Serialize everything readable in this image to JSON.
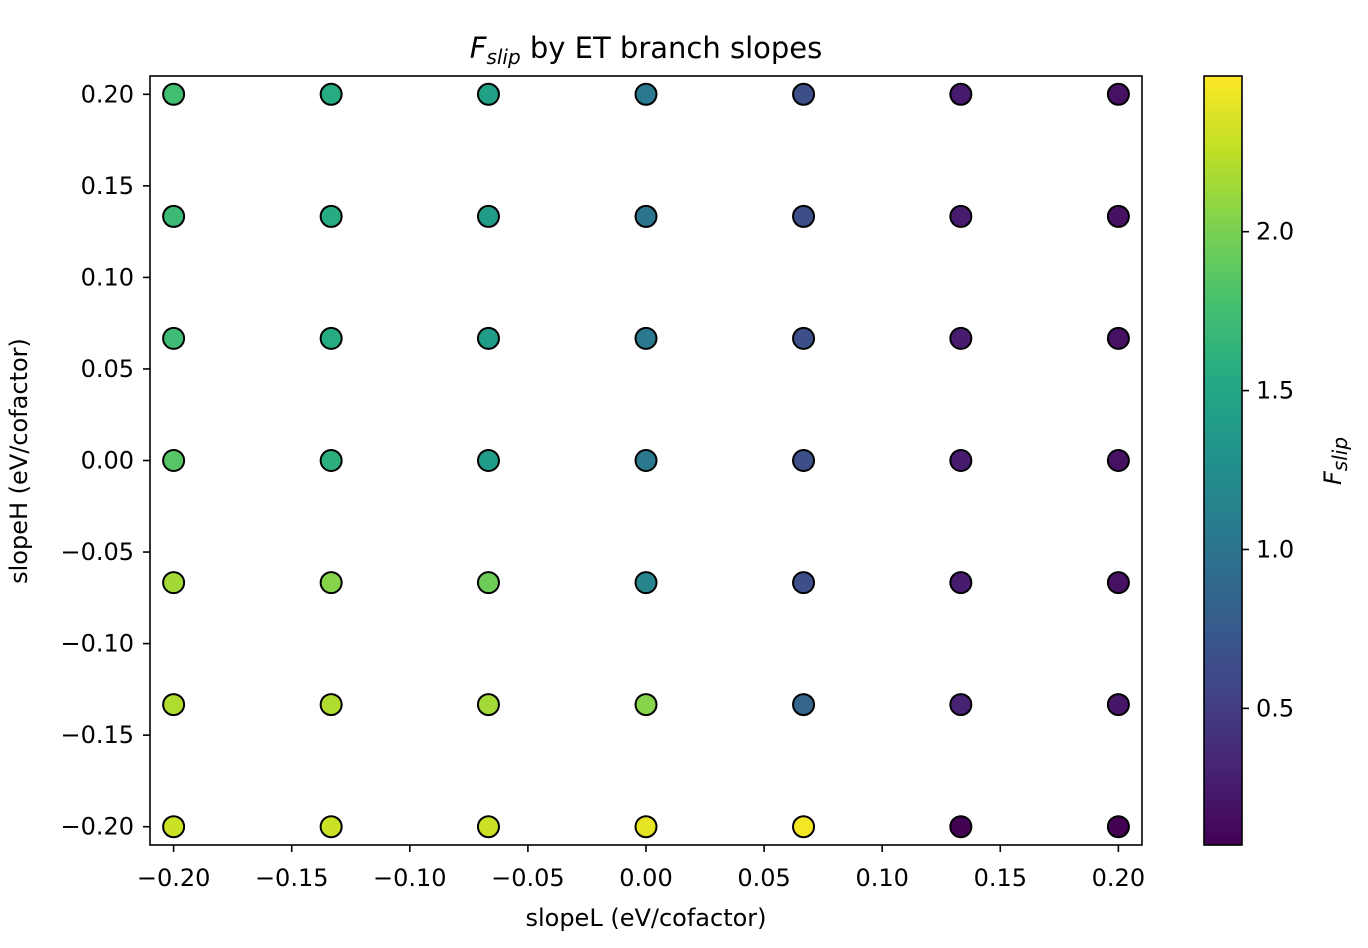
{
  "chart_data": {
    "type": "scatter",
    "title": {
      "symbol": "F",
      "subscript": "slip",
      "rest": " by ET branch slopes"
    },
    "xlabel": "slopeL (eV/cofactor)",
    "ylabel": "slopeH (eV/cofactor)",
    "colorbar_label": {
      "symbol": "F",
      "subscript": "slip"
    },
    "xlim": [
      -0.21,
      0.21
    ],
    "ylim": [
      -0.21,
      0.21
    ],
    "x_ticks": [
      -0.2,
      -0.15,
      -0.1,
      -0.05,
      0.0,
      0.05,
      0.1,
      0.15,
      0.2
    ],
    "x_tick_labels": [
      "−0.20",
      "−0.15",
      "−0.10",
      "−0.05",
      "0.00",
      "0.05",
      "0.10",
      "0.15",
      "0.20"
    ],
    "y_ticks": [
      0.2,
      0.15,
      0.1,
      0.05,
      0.0,
      -0.05,
      -0.1,
      -0.15,
      -0.2
    ],
    "y_tick_labels": [
      "0.20",
      "0.15",
      "0.10",
      "0.05",
      "0.00",
      "−0.05",
      "−0.10",
      "−0.15",
      "−0.20"
    ],
    "colorbar": {
      "colormap": "viridis",
      "range": [
        0.07,
        2.49
      ],
      "ticks": [
        0.5,
        1.0,
        1.5,
        2.0
      ],
      "tick_labels": [
        "0.5",
        "1.0",
        "1.5",
        "2.0"
      ]
    },
    "grid": false,
    "x_values": [
      -0.2,
      -0.1333,
      -0.0667,
      0.0,
      0.0667,
      0.1333,
      0.2
    ],
    "y_values": [
      0.2,
      0.1333,
      0.0667,
      0.0,
      -0.0667,
      -0.1333,
      -0.2
    ],
    "color_values": [
      [
        1.75,
        1.55,
        1.45,
        1.05,
        0.65,
        0.25,
        0.18
      ],
      [
        1.7,
        1.55,
        1.4,
        1.0,
        0.65,
        0.25,
        0.18
      ],
      [
        1.72,
        1.55,
        1.4,
        1.05,
        0.65,
        0.25,
        0.18
      ],
      [
        1.85,
        1.6,
        1.4,
        1.05,
        0.65,
        0.25,
        0.18
      ],
      [
        2.15,
        2.05,
        1.95,
        1.15,
        0.65,
        0.25,
        0.18
      ],
      [
        2.2,
        2.2,
        2.15,
        2.05,
        0.85,
        0.3,
        0.22
      ],
      [
        2.3,
        2.3,
        2.3,
        2.4,
        2.45,
        0.08,
        0.07
      ]
    ]
  }
}
